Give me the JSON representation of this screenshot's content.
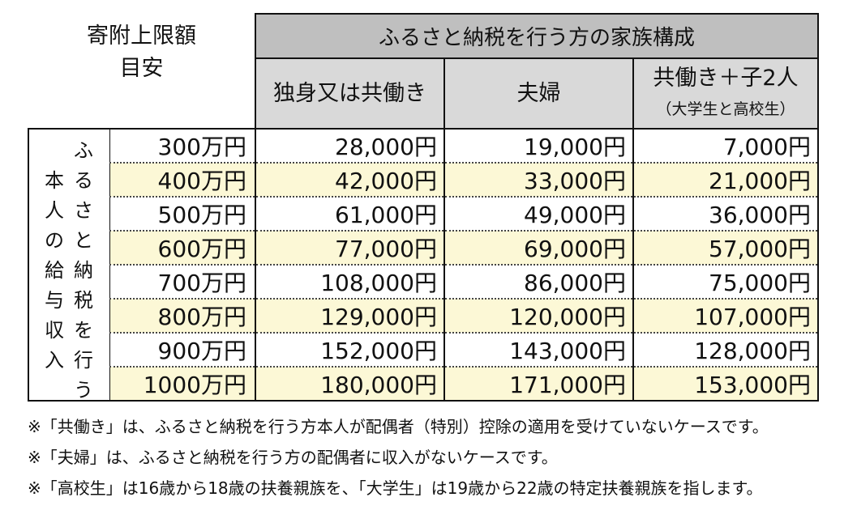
{
  "corner": {
    "line1": "寄附上限額",
    "line2": "目安"
  },
  "family_header": "ふるさと納税を行う方の家族構成",
  "columns": [
    {
      "label": "独身又は共働き",
      "sub": ""
    },
    {
      "label": "夫婦",
      "sub": ""
    },
    {
      "label": "共働き＋子2人",
      "sub": "（大学生と高校生）"
    }
  ],
  "row_header": {
    "right_col": "ふるさと納税を行う",
    "left_col": "本人の給与収入"
  },
  "rows": [
    {
      "income": "300万円",
      "values": [
        "28,000円",
        "19,000円",
        "7,000円"
      ]
    },
    {
      "income": "400万円",
      "values": [
        "42,000円",
        "33,000円",
        "21,000円"
      ]
    },
    {
      "income": "500万円",
      "values": [
        "61,000円",
        "49,000円",
        "36,000円"
      ]
    },
    {
      "income": "600万円",
      "values": [
        "77,000円",
        "69,000円",
        "57,000円"
      ]
    },
    {
      "income": "700万円",
      "values": [
        "108,000円",
        "86,000円",
        "75,000円"
      ]
    },
    {
      "income": "800万円",
      "values": [
        "129,000円",
        "120,000円",
        "107,000円"
      ]
    },
    {
      "income": "900万円",
      "values": [
        "152,000円",
        "143,000円",
        "128,000円"
      ]
    },
    {
      "income": "1000万円",
      "values": [
        "180,000円",
        "171,000円",
        "153,000円"
      ]
    }
  ],
  "notes": [
    "※「共働き」は、ふるさと納税を行う方本人が配偶者（特別）控除の適用を受けていないケースです。",
    "※「夫婦」は、ふるさと納税を行う方の配偶者に収入がないケースです。",
    "※「高校生」は16歳から18歳の扶養親族を、「大学生」は19歳から22歳の特定扶養親族を指します。"
  ],
  "colors": {
    "header_dark": "#bfbfbf",
    "header_light": "#d9d9d9",
    "row_alt": "#fcf8d6",
    "border": "#111111"
  }
}
